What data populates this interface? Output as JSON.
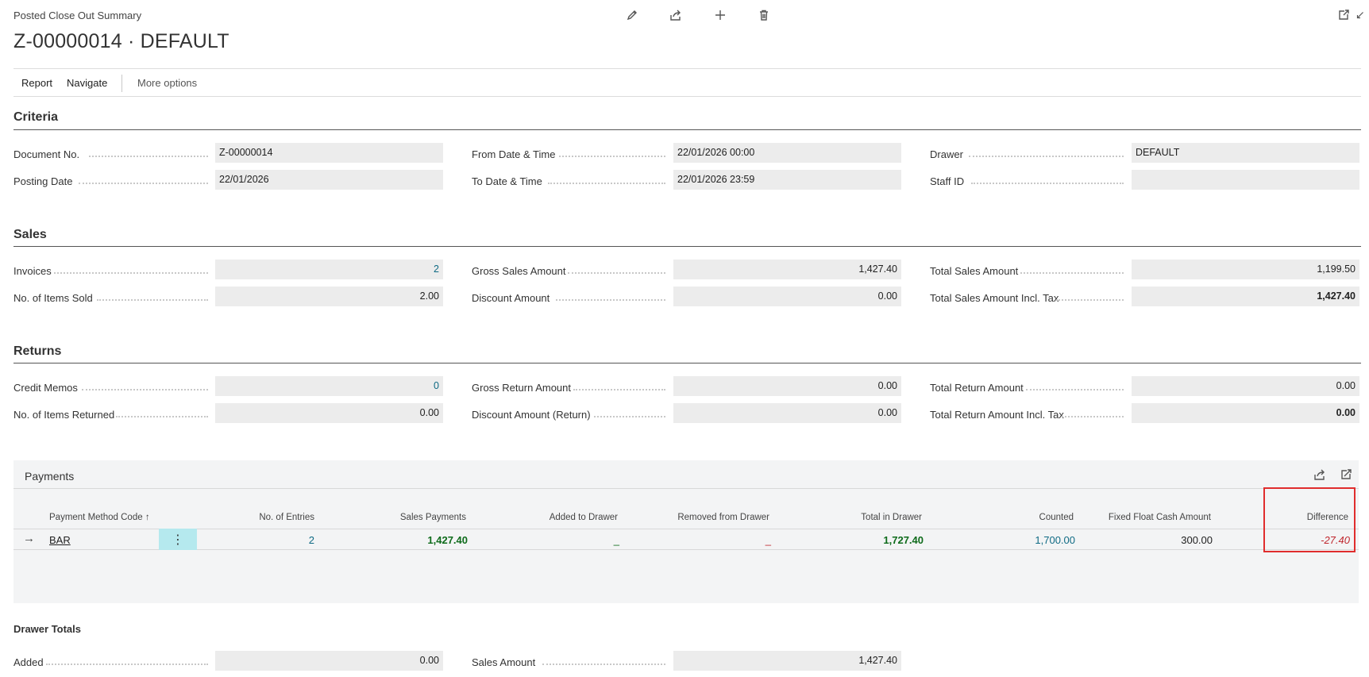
{
  "header": {
    "page_type": "Posted Close Out Summary",
    "title": "Z-00000014 · DEFAULT",
    "icons": [
      "edit-icon",
      "share-icon",
      "add-icon",
      "delete-icon",
      "open-new-window-icon",
      "collapse-icon"
    ]
  },
  "actions": {
    "report": "Report",
    "navigate": "Navigate",
    "more_options": "More options"
  },
  "criteria": {
    "title": "Criteria",
    "document_no": {
      "label": "Document No.",
      "value": "Z-00000014"
    },
    "posting_date": {
      "label": "Posting Date",
      "value": "22/01/2026"
    },
    "from_date_time": {
      "label": "From Date & Time",
      "value": "22/01/2026 00:00"
    },
    "to_date_time": {
      "label": "To Date & Time",
      "value": "22/01/2026 23:59"
    },
    "drawer": {
      "label": "Drawer",
      "value": "DEFAULT"
    },
    "staff_id": {
      "label": "Staff ID",
      "value": ""
    }
  },
  "sales": {
    "title": "Sales",
    "invoices": {
      "label": "Invoices",
      "value": "2"
    },
    "items_sold": {
      "label": "No. of Items Sold",
      "value": "2.00"
    },
    "gross_sales": {
      "label": "Gross Sales Amount",
      "value": "1,427.40"
    },
    "discount": {
      "label": "Discount Amount",
      "value": "0.00"
    },
    "total_sales": {
      "label": "Total Sales Amount",
      "value": "1,199.50"
    },
    "total_sales_incl_tax": {
      "label": "Total Sales Amount Incl. Tax",
      "value": "1,427.40"
    }
  },
  "returns": {
    "title": "Returns",
    "credit_memos": {
      "label": "Credit Memos",
      "value": "0"
    },
    "items_returned": {
      "label": "No. of Items Returned",
      "value": "0.00"
    },
    "gross_return": {
      "label": "Gross Return Amount",
      "value": "0.00"
    },
    "discount_return": {
      "label": "Discount Amount (Return)",
      "value": "0.00"
    },
    "total_return": {
      "label": "Total Return Amount",
      "value": "0.00"
    },
    "total_return_incl_tax": {
      "label": "Total Return Amount Incl. Tax",
      "value": "0.00"
    }
  },
  "payments": {
    "title": "Payments",
    "columns": {
      "method": "Payment Method Code",
      "entries": "No. of Entries",
      "sales_payments": "Sales Payments",
      "added": "Added to Drawer",
      "removed": "Removed from Drawer",
      "total": "Total in Drawer",
      "counted": "Counted",
      "fixed_float": "Fixed Float Cash Amount",
      "difference": "Difference"
    },
    "sort_glyph": "↑",
    "row_menu_glyph": "⋮",
    "row_pointer": "→",
    "rows": [
      {
        "method": "BAR",
        "entries": "2",
        "sales_payments": "1,427.40",
        "added": "_",
        "removed": "_",
        "total": "1,727.40",
        "counted": "1,700.00",
        "fixed_float": "300.00",
        "difference": "-27.40"
      }
    ]
  },
  "drawer_totals": {
    "title": "Drawer Totals",
    "added": {
      "label": "Added",
      "value": "0.00"
    },
    "sales_amount": {
      "label": "Sales Amount",
      "value": "1,427.40"
    }
  }
}
